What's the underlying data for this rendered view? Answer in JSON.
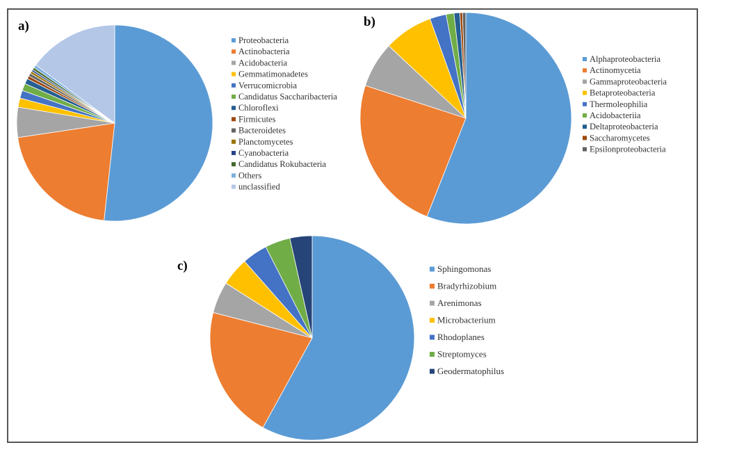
{
  "chart_data": [
    {
      "type": "pie",
      "panel_label": "a)",
      "legend_position": "right",
      "categories": [
        "Proteobacteria",
        "Actinobacteria",
        "Acidobacteria",
        "Gemmatimonadetes",
        "Verrucomicrobia",
        "Candidatus Saccharibacteria",
        "Chloroflexi",
        "Firmicutes",
        "Bacteroidetes",
        "Planctomycetes",
        "Cyanobacteria",
        "Candidatus Rokubacteria",
        "Others",
        "unclassified"
      ],
      "values": [
        52,
        21,
        5,
        1.5,
        1.3,
        1.2,
        0.9,
        0.5,
        0.5,
        0.4,
        0.3,
        0.4,
        0.5,
        15
      ],
      "colors": [
        "#5b9bd5",
        "#ed7d31",
        "#a5a5a5",
        "#ffc000",
        "#4472c4",
        "#70ad47",
        "#255e91",
        "#9e480e",
        "#636363",
        "#997300",
        "#26448a",
        "#43682b",
        "#7cafdd",
        "#b4c7e7"
      ]
    },
    {
      "type": "pie",
      "panel_label": "b)",
      "legend_position": "right",
      "categories": [
        "Alphaproteobacteria",
        "Actinomycetia",
        "Gammaproteobacteria",
        "Betaproteobacteria",
        "Thermoleophilia",
        "Acidobacteriia",
        "Deltaproteobacteria",
        "Saccharomycetes",
        "Epsilonproteobacteria"
      ],
      "values": [
        56,
        24,
        7,
        7.5,
        2.5,
        1.2,
        0.9,
        0.4,
        0.5
      ],
      "colors": [
        "#5b9bd5",
        "#ed7d31",
        "#a5a5a5",
        "#ffc000",
        "#4472c4",
        "#70ad47",
        "#255e91",
        "#9e480e",
        "#636363"
      ]
    },
    {
      "type": "pie",
      "panel_label": "c)",
      "legend_position": "right",
      "categories": [
        "Sphingomonas",
        "Bradyrhizobium",
        "Arenimonas",
        "Microbacterium",
        "Rhodoplanes",
        "Streptomyces",
        "Geodermatophilus"
      ],
      "values": [
        58,
        21,
        5,
        4.5,
        4,
        4,
        3.5
      ],
      "colors": [
        "#5b9bd5",
        "#ed7d31",
        "#a5a5a5",
        "#ffc000",
        "#4472c4",
        "#70ad47",
        "#264478"
      ]
    }
  ]
}
